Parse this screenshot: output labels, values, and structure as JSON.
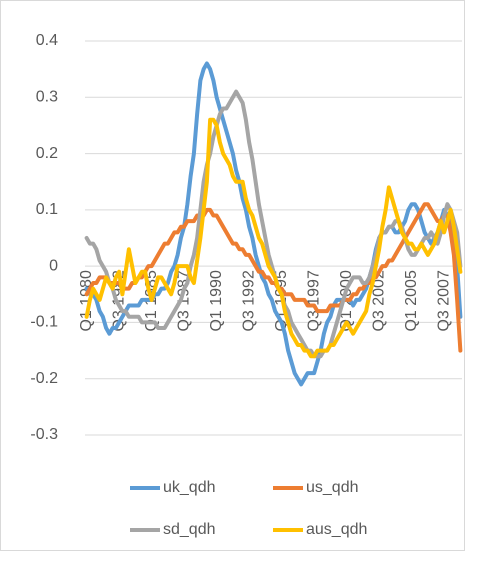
{
  "chart_data": {
    "type": "line",
    "categories": [
      "Q1 1980",
      null,
      null,
      null,
      null,
      null,
      null,
      null,
      null,
      null,
      "Q3 1982",
      null,
      null,
      null,
      null,
      null,
      null,
      null,
      null,
      null,
      "Q1 1985",
      null,
      null,
      null,
      null,
      null,
      null,
      null,
      null,
      null,
      "Q3 1987",
      null,
      null,
      null,
      null,
      null,
      null,
      null,
      null,
      null,
      "Q1 1990",
      null,
      null,
      null,
      null,
      null,
      null,
      null,
      null,
      null,
      "Q3 1992",
      null,
      null,
      null,
      null,
      null,
      null,
      null,
      null,
      null,
      "Q1 1995",
      null,
      null,
      null,
      null,
      null,
      null,
      null,
      null,
      null,
      "Q3 1997",
      null,
      null,
      null,
      null,
      null,
      null,
      null,
      null,
      null,
      "Q1 2000",
      null,
      null,
      null,
      null,
      null,
      null,
      null,
      null,
      null,
      "Q3 2002",
      null,
      null,
      null,
      null,
      null,
      null,
      null,
      null,
      null,
      "Q1 2005",
      null,
      null,
      null,
      null,
      null,
      null,
      null,
      null,
      null,
      "Q3 2007",
      null,
      null,
      null,
      null,
      null
    ],
    "series": [
      {
        "name": "uk_qdh",
        "color": "#5b9bd5",
        "values": [
          -0.04,
          -0.05,
          -0.05,
          -0.06,
          -0.08,
          -0.09,
          -0.11,
          -0.12,
          -0.11,
          -0.11,
          -0.1,
          -0.09,
          -0.08,
          -0.07,
          -0.07,
          -0.07,
          -0.07,
          -0.06,
          -0.06,
          -0.06,
          -0.06,
          -0.05,
          -0.05,
          -0.04,
          -0.04,
          -0.03,
          -0.01,
          0,
          0.02,
          0.05,
          0.07,
          0.11,
          0.16,
          0.2,
          0.27,
          0.33,
          0.35,
          0.36,
          0.35,
          0.33,
          0.3,
          0.28,
          0.26,
          0.24,
          0.22,
          0.2,
          0.17,
          0.15,
          0.12,
          0.1,
          0.07,
          0.05,
          0.02,
          0,
          -0.02,
          -0.03,
          -0.05,
          -0.06,
          -0.08,
          -0.09,
          -0.1,
          -0.12,
          -0.15,
          -0.17,
          -0.19,
          -0.2,
          -0.21,
          -0.2,
          -0.19,
          -0.19,
          -0.19,
          -0.17,
          -0.15,
          -0.12,
          -0.1,
          -0.09,
          -0.07,
          -0.06,
          -0.06,
          -0.06,
          -0.06,
          -0.06,
          -0.07,
          -0.06,
          -0.06,
          -0.05,
          -0.04,
          -0.02,
          0,
          0.03,
          0.05,
          0.06,
          0.06,
          0.07,
          0.07,
          0.06,
          0.06,
          0.07,
          0.08,
          0.1,
          0.11,
          0.11,
          0.1,
          0.08,
          0.06,
          0.05,
          0.04,
          0.05,
          0.06,
          0.08,
          0.1,
          0.09,
          0.08,
          0.04,
          0,
          -0.09
        ]
      },
      {
        "name": "us_qdh",
        "color": "#ed7d31",
        "values": [
          -0.05,
          -0.04,
          -0.03,
          -0.03,
          -0.02,
          -0.02,
          -0.02,
          -0.03,
          -0.03,
          -0.03,
          -0.03,
          -0.04,
          -0.04,
          -0.04,
          -0.03,
          -0.03,
          -0.02,
          -0.02,
          -0.01,
          0,
          0,
          0.01,
          0.02,
          0.03,
          0.04,
          0.04,
          0.05,
          0.06,
          0.06,
          0.07,
          0.07,
          0.08,
          0.08,
          0.08,
          0.09,
          0.09,
          0.09,
          0.1,
          0.1,
          0.09,
          0.09,
          0.08,
          0.07,
          0.06,
          0.05,
          0.04,
          0.04,
          0.03,
          0.03,
          0.02,
          0.02,
          0.01,
          0,
          -0.01,
          -0.01,
          -0.02,
          -0.02,
          -0.03,
          -0.03,
          -0.04,
          -0.04,
          -0.05,
          -0.05,
          -0.05,
          -0.06,
          -0.06,
          -0.06,
          -0.06,
          -0.07,
          -0.07,
          -0.07,
          -0.08,
          -0.08,
          -0.08,
          -0.08,
          -0.07,
          -0.07,
          -0.07,
          -0.07,
          -0.06,
          -0.06,
          -0.06,
          -0.05,
          -0.05,
          -0.04,
          -0.04,
          -0.03,
          -0.03,
          -0.02,
          -0.02,
          -0.01,
          0,
          0,
          0.01,
          0.01,
          0.02,
          0.03,
          0.04,
          0.05,
          0.06,
          0.07,
          0.08,
          0.09,
          0.1,
          0.11,
          0.11,
          0.1,
          0.09,
          0.08,
          0.08,
          0.09,
          0.09,
          0.06,
          0.02,
          -0.06,
          -0.15
        ]
      },
      {
        "name": "sd_qdh",
        "color": "#a5a5a5",
        "values": [
          0.05,
          0.04,
          0.04,
          0.03,
          0.01,
          0,
          -0.01,
          -0.03,
          -0.04,
          -0.06,
          -0.07,
          -0.08,
          -0.08,
          -0.09,
          -0.09,
          -0.09,
          -0.09,
          -0.1,
          -0.1,
          -0.1,
          -0.1,
          -0.1,
          -0.11,
          -0.11,
          -0.11,
          -0.1,
          -0.09,
          -0.08,
          -0.07,
          -0.06,
          -0.04,
          -0.03,
          0,
          0.02,
          0.05,
          0.1,
          0.15,
          0.18,
          0.2,
          0.23,
          0.25,
          0.27,
          0.28,
          0.28,
          0.29,
          0.3,
          0.31,
          0.3,
          0.29,
          0.26,
          0.22,
          0.19,
          0.15,
          0.11,
          0.08,
          0.05,
          0.02,
          0,
          -0.02,
          -0.04,
          -0.05,
          -0.07,
          -0.08,
          -0.1,
          -0.11,
          -0.12,
          -0.13,
          -0.14,
          -0.15,
          -0.15,
          -0.16,
          -0.16,
          -0.16,
          -0.15,
          -0.15,
          -0.14,
          -0.12,
          -0.1,
          -0.08,
          -0.06,
          -0.04,
          -0.03,
          -0.02,
          -0.02,
          -0.02,
          -0.03,
          -0.03,
          -0.02,
          0,
          0.02,
          0.05,
          0.06,
          0.06,
          0.07,
          0.07,
          0.08,
          0.08,
          0.07,
          0.05,
          0.03,
          0.02,
          0.02,
          0.03,
          0.04,
          0.05,
          0.05,
          0.06,
          0.05,
          0.04,
          0.06,
          0.09,
          0.11,
          0.1,
          0.08,
          0.06,
          0
        ]
      },
      {
        "name": "aus_qdh",
        "color": "#ffc000",
        "values": [
          -0.09,
          -0.06,
          -0.04,
          -0.05,
          -0.06,
          -0.04,
          -0.02,
          -0.03,
          -0.04,
          -0.02,
          -0.01,
          -0.05,
          -0.01,
          0.03,
          0,
          -0.03,
          -0.02,
          -0.01,
          -0.01,
          -0.04,
          -0.06,
          -0.04,
          -0.02,
          -0.02,
          -0.03,
          -0.04,
          -0.05,
          -0.03,
          0,
          0,
          0,
          0,
          -0.02,
          -0.03,
          0.01,
          0.05,
          0.1,
          0.15,
          0.26,
          0.26,
          0.25,
          0.22,
          0.2,
          0.19,
          0.18,
          0.16,
          0.15,
          0.15,
          0.15,
          0.12,
          0.1,
          0.09,
          0.07,
          0.05,
          0.04,
          0.02,
          0,
          -0.01,
          -0.02,
          -0.04,
          -0.05,
          -0.08,
          -0.1,
          -0.12,
          -0.13,
          -0.14,
          -0.14,
          -0.15,
          -0.15,
          -0.16,
          -0.16,
          -0.15,
          -0.15,
          -0.15,
          -0.15,
          -0.14,
          -0.14,
          -0.13,
          -0.12,
          -0.11,
          -0.1,
          -0.11,
          -0.12,
          -0.11,
          -0.1,
          -0.09,
          -0.08,
          -0.05,
          -0.03,
          0,
          0.03,
          0.07,
          0.1,
          0.14,
          0.12,
          0.1,
          0.08,
          0.06,
          0.05,
          0.04,
          0.04,
          0.03,
          0.03,
          0.04,
          0.03,
          0.02,
          0.03,
          0.04,
          0.06,
          0.08,
          0.06,
          0.08,
          0.1,
          0.07,
          0.03,
          -0.01
        ]
      }
    ],
    "ylim": [
      -0.3,
      0.4
    ],
    "yticks": [
      -0.3,
      -0.2,
      -0.1,
      0,
      0.1,
      0.2,
      0.3,
      0.4
    ],
    "grid": true,
    "legend": "bottom"
  }
}
